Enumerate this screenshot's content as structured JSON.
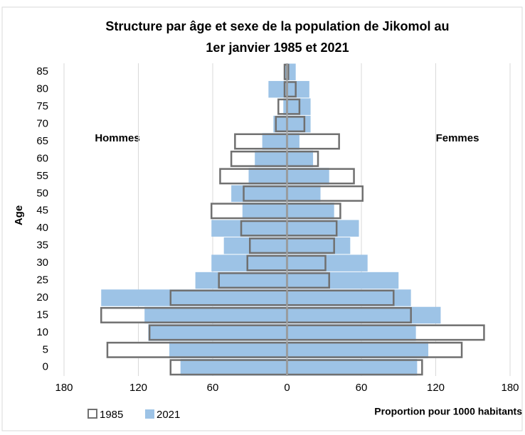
{
  "chart_data": {
    "type": "pyramid",
    "title": "Structure par âge et sexe de la population de Jikomol au",
    "subtitle": "1er janvier 1985 et 2021",
    "x_label": "Proportion pour 1000 habitants",
    "y_label": "Age",
    "left_label": "Hommes",
    "right_label": "Femmes",
    "categories": [
      "0",
      "5",
      "10",
      "15",
      "20",
      "25",
      "30",
      "35",
      "40",
      "45",
      "50",
      "55",
      "60",
      "65",
      "70",
      "75",
      "80",
      "85"
    ],
    "xlim": [
      -180,
      180
    ],
    "xticks": [
      {
        "value": -180,
        "label": "180"
      },
      {
        "value": -120,
        "label": "120"
      },
      {
        "value": -60,
        "label": "60"
      },
      0,
      60,
      120,
      180
    ],
    "grid": true,
    "series": [
      {
        "name": "1985",
        "style": "outline",
        "color": "#707070",
        "left": [
          94,
          145,
          111,
          150,
          94,
          55,
          32,
          30,
          37,
          61,
          35,
          54,
          45,
          42,
          9,
          7,
          2,
          2
        ],
        "right": [
          109,
          141,
          159,
          100,
          86,
          34,
          31,
          38,
          40,
          43,
          61,
          54,
          25,
          42,
          14,
          10,
          7,
          1
        ]
      },
      {
        "name": "2021",
        "style": "filled",
        "color": "#9dc3e6",
        "left": [
          86,
          95,
          112,
          115,
          150,
          74,
          61,
          51,
          61,
          36,
          45,
          31,
          26,
          20,
          11,
          3,
          15,
          2
        ],
        "right": [
          105,
          114,
          104,
          124,
          100,
          90,
          65,
          51,
          58,
          38,
          27,
          34,
          21,
          10,
          19,
          19,
          18,
          7
        ]
      }
    ]
  }
}
